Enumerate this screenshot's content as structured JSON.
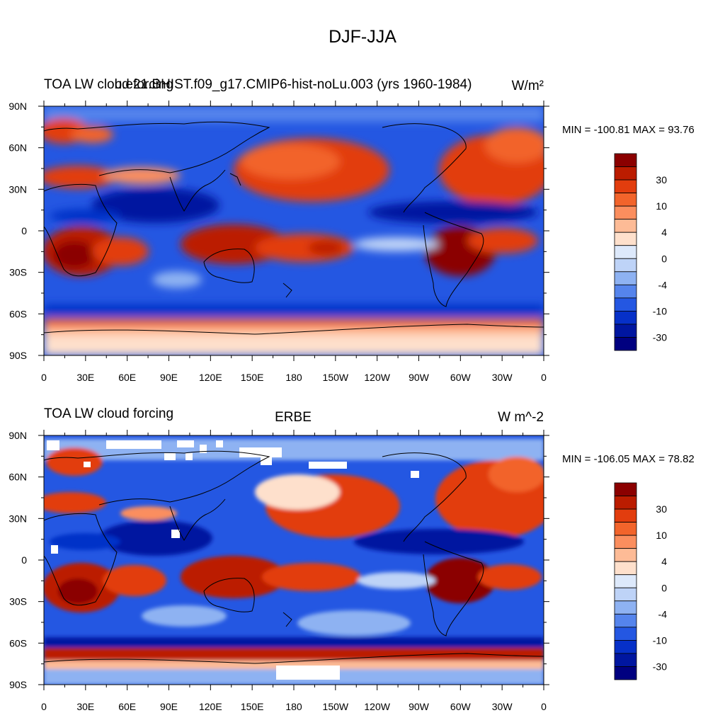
{
  "figure": {
    "title": "DJF-JJA"
  },
  "panels": [
    {
      "left_title": "TOA LW cloud forcing",
      "center_title": "b.e21.BHIST.f09_g17.CMIP6-hist-noLu.003 (yrs 1960-1984)",
      "units": "W/m²",
      "stats": "MIN = -100.81 MAX =  93.76"
    },
    {
      "left_title": "TOA LW cloud forcing",
      "center_title": "ERBE",
      "units": "W m^-2",
      "stats": "MIN = -106.05 MAX =  78.82"
    }
  ],
  "axes": {
    "lat_labels": [
      "90N",
      "60N",
      "30N",
      "0",
      "30S",
      "60S",
      "90S"
    ],
    "lon_labels": [
      "0",
      "30E",
      "60E",
      "90E",
      "120E",
      "150E",
      "180",
      "150W",
      "120W",
      "90W",
      "60W",
      "30W",
      "0"
    ]
  },
  "colorbar": {
    "labels": [
      "30",
      "10",
      "4",
      "0",
      "-4",
      "-10",
      "-30"
    ],
    "colors": [
      "#8b0000",
      "#bb1c00",
      "#e23d0e",
      "#f2642b",
      "#fb8e5e",
      "#fdbb96",
      "#fee0cc",
      "#dde9fb",
      "#bed3f7",
      "#8eb2f2",
      "#5584ec",
      "#2457e2",
      "#0630c8",
      "#0016a0",
      "#000080"
    ]
  },
  "chart_data": {
    "type": "heatmap",
    "title": "DJF-JJA",
    "panels": [
      {
        "dataset": "b.e21.BHIST.f09_g17.CMIP6-hist-noLu.003 (yrs 1960-1984)",
        "variable": "TOA LW cloud forcing",
        "units": "W/m²",
        "min": -100.81,
        "max": 93.76
      },
      {
        "dataset": "ERBE",
        "variable": "TOA LW cloud forcing",
        "units": "W m^-2",
        "min": -106.05,
        "max": 78.82
      }
    ],
    "contour_levels": [
      -50,
      -40,
      -30,
      -20,
      -15,
      -10,
      -6,
      -4,
      -2,
      0,
      2,
      4,
      6,
      10,
      15,
      20,
      30,
      40,
      50
    ],
    "xlim": [
      "0",
      "0"
    ],
    "ylim": [
      "90S",
      "90N"
    ]
  }
}
